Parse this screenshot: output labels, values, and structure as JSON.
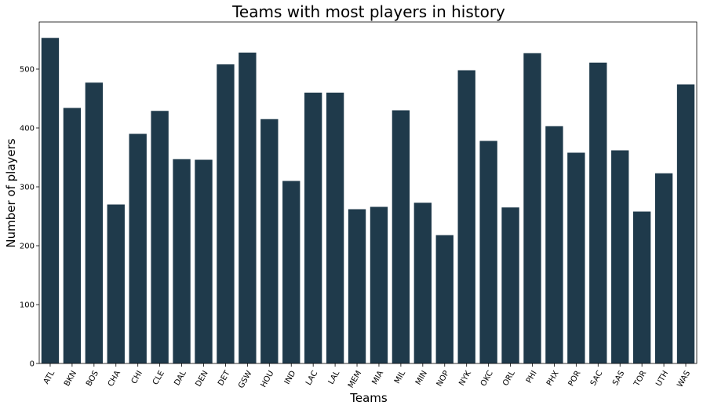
{
  "chart_data": {
    "type": "bar",
    "title": "Teams with most players in history",
    "xlabel": "Teams",
    "ylabel": "Number of players",
    "ylim": [
      0,
      580
    ],
    "yticks": [
      0,
      100,
      200,
      300,
      400,
      500
    ],
    "grid": false,
    "bar_color": "#1f3a4b",
    "categories": [
      "ATL",
      "BKN",
      "BOS",
      "CHA",
      "CHI",
      "CLE",
      "DAL",
      "DEN",
      "DET",
      "GSW",
      "HOU",
      "IND",
      "LAC",
      "LAL",
      "MEM",
      "MIA",
      "MIL",
      "MIN",
      "NOP",
      "NYK",
      "OKC",
      "ORL",
      "PHI",
      "PHX",
      "POR",
      "SAC",
      "SAS",
      "TOR",
      "UTH",
      "WAS"
    ],
    "values": [
      553,
      434,
      477,
      270,
      390,
      429,
      347,
      346,
      508,
      528,
      415,
      310,
      460,
      460,
      262,
      266,
      430,
      273,
      218,
      498,
      378,
      265,
      527,
      403,
      358,
      511,
      362,
      258,
      323,
      474
    ]
  }
}
